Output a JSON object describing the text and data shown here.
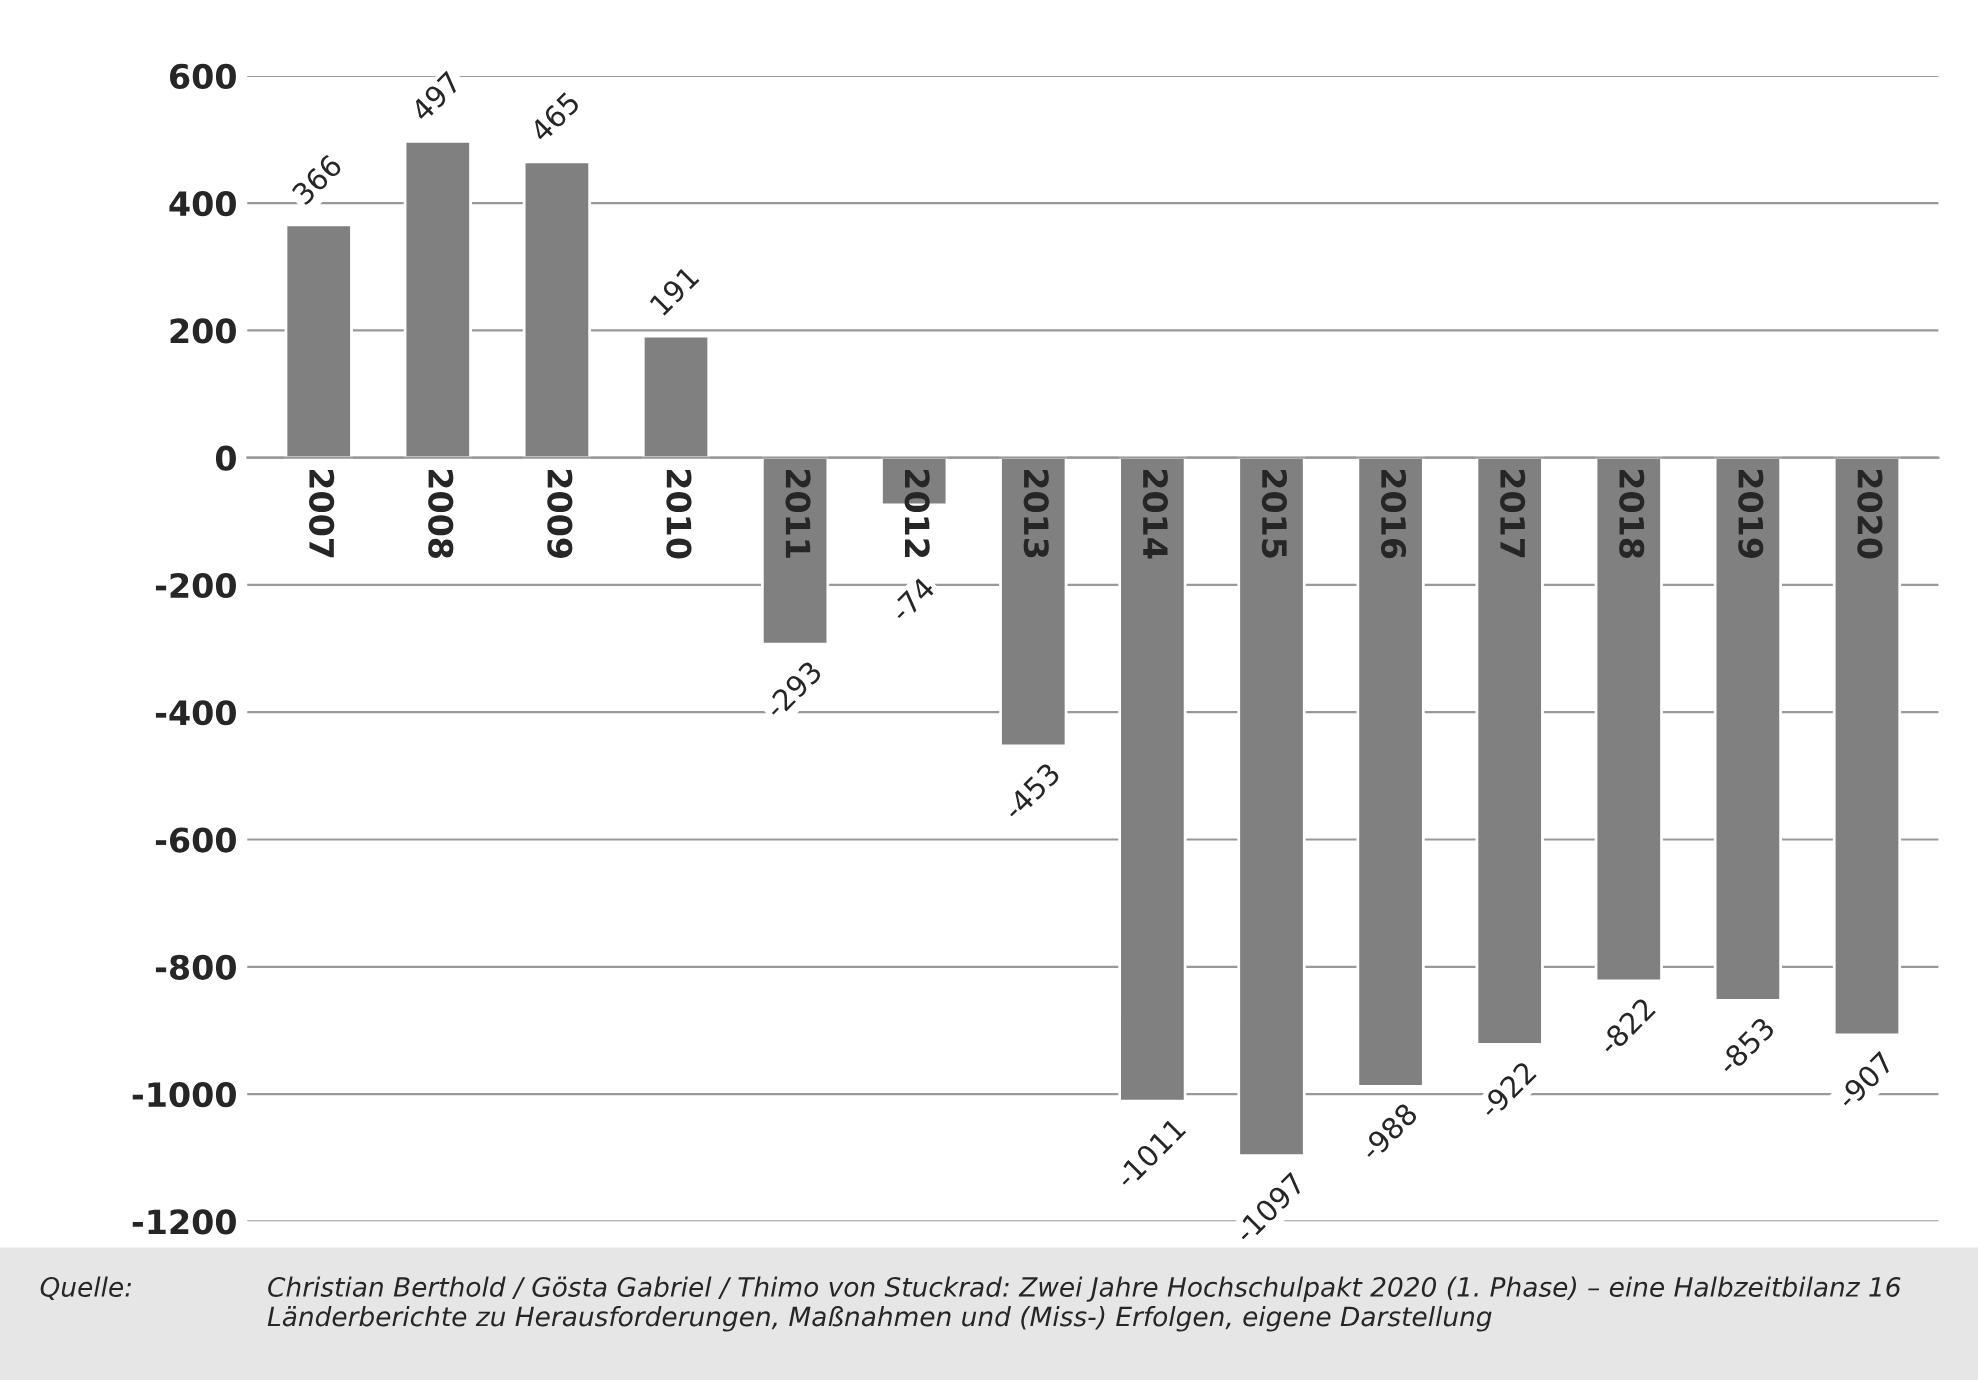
{
  "chart_data": {
    "type": "bar",
    "categories": [
      "2007",
      "2008",
      "2009",
      "2010",
      "2011",
      "2012",
      "2013",
      "2014",
      "2015",
      "2016",
      "2017",
      "2018",
      "2019",
      "2020"
    ],
    "values": [
      366,
      497,
      465,
      191,
      -293,
      -74,
      -453,
      -1011,
      -1097,
      -988,
      -922,
      -822,
      -853,
      -907
    ],
    "color": "#808080",
    "ylim": [
      -1200,
      600
    ],
    "yticks": [
      -1200,
      -1000,
      -800,
      -600,
      -400,
      -200,
      0,
      200,
      400,
      600
    ],
    "grid": "y",
    "data_labels": true,
    "annotations": [
      "Quelle:",
      "Christian Berthold / Gösta Gabriel / Thimo von Stuckrad: Zwei Jahre Hochschulpakt 2020 (1. Phase) – eine Halbzeitbilanz 16 Länderberichte zu Herausforderungen, Maßnahmen und (Miss-) Erfolgen, eigene Darstellung"
    ]
  }
}
